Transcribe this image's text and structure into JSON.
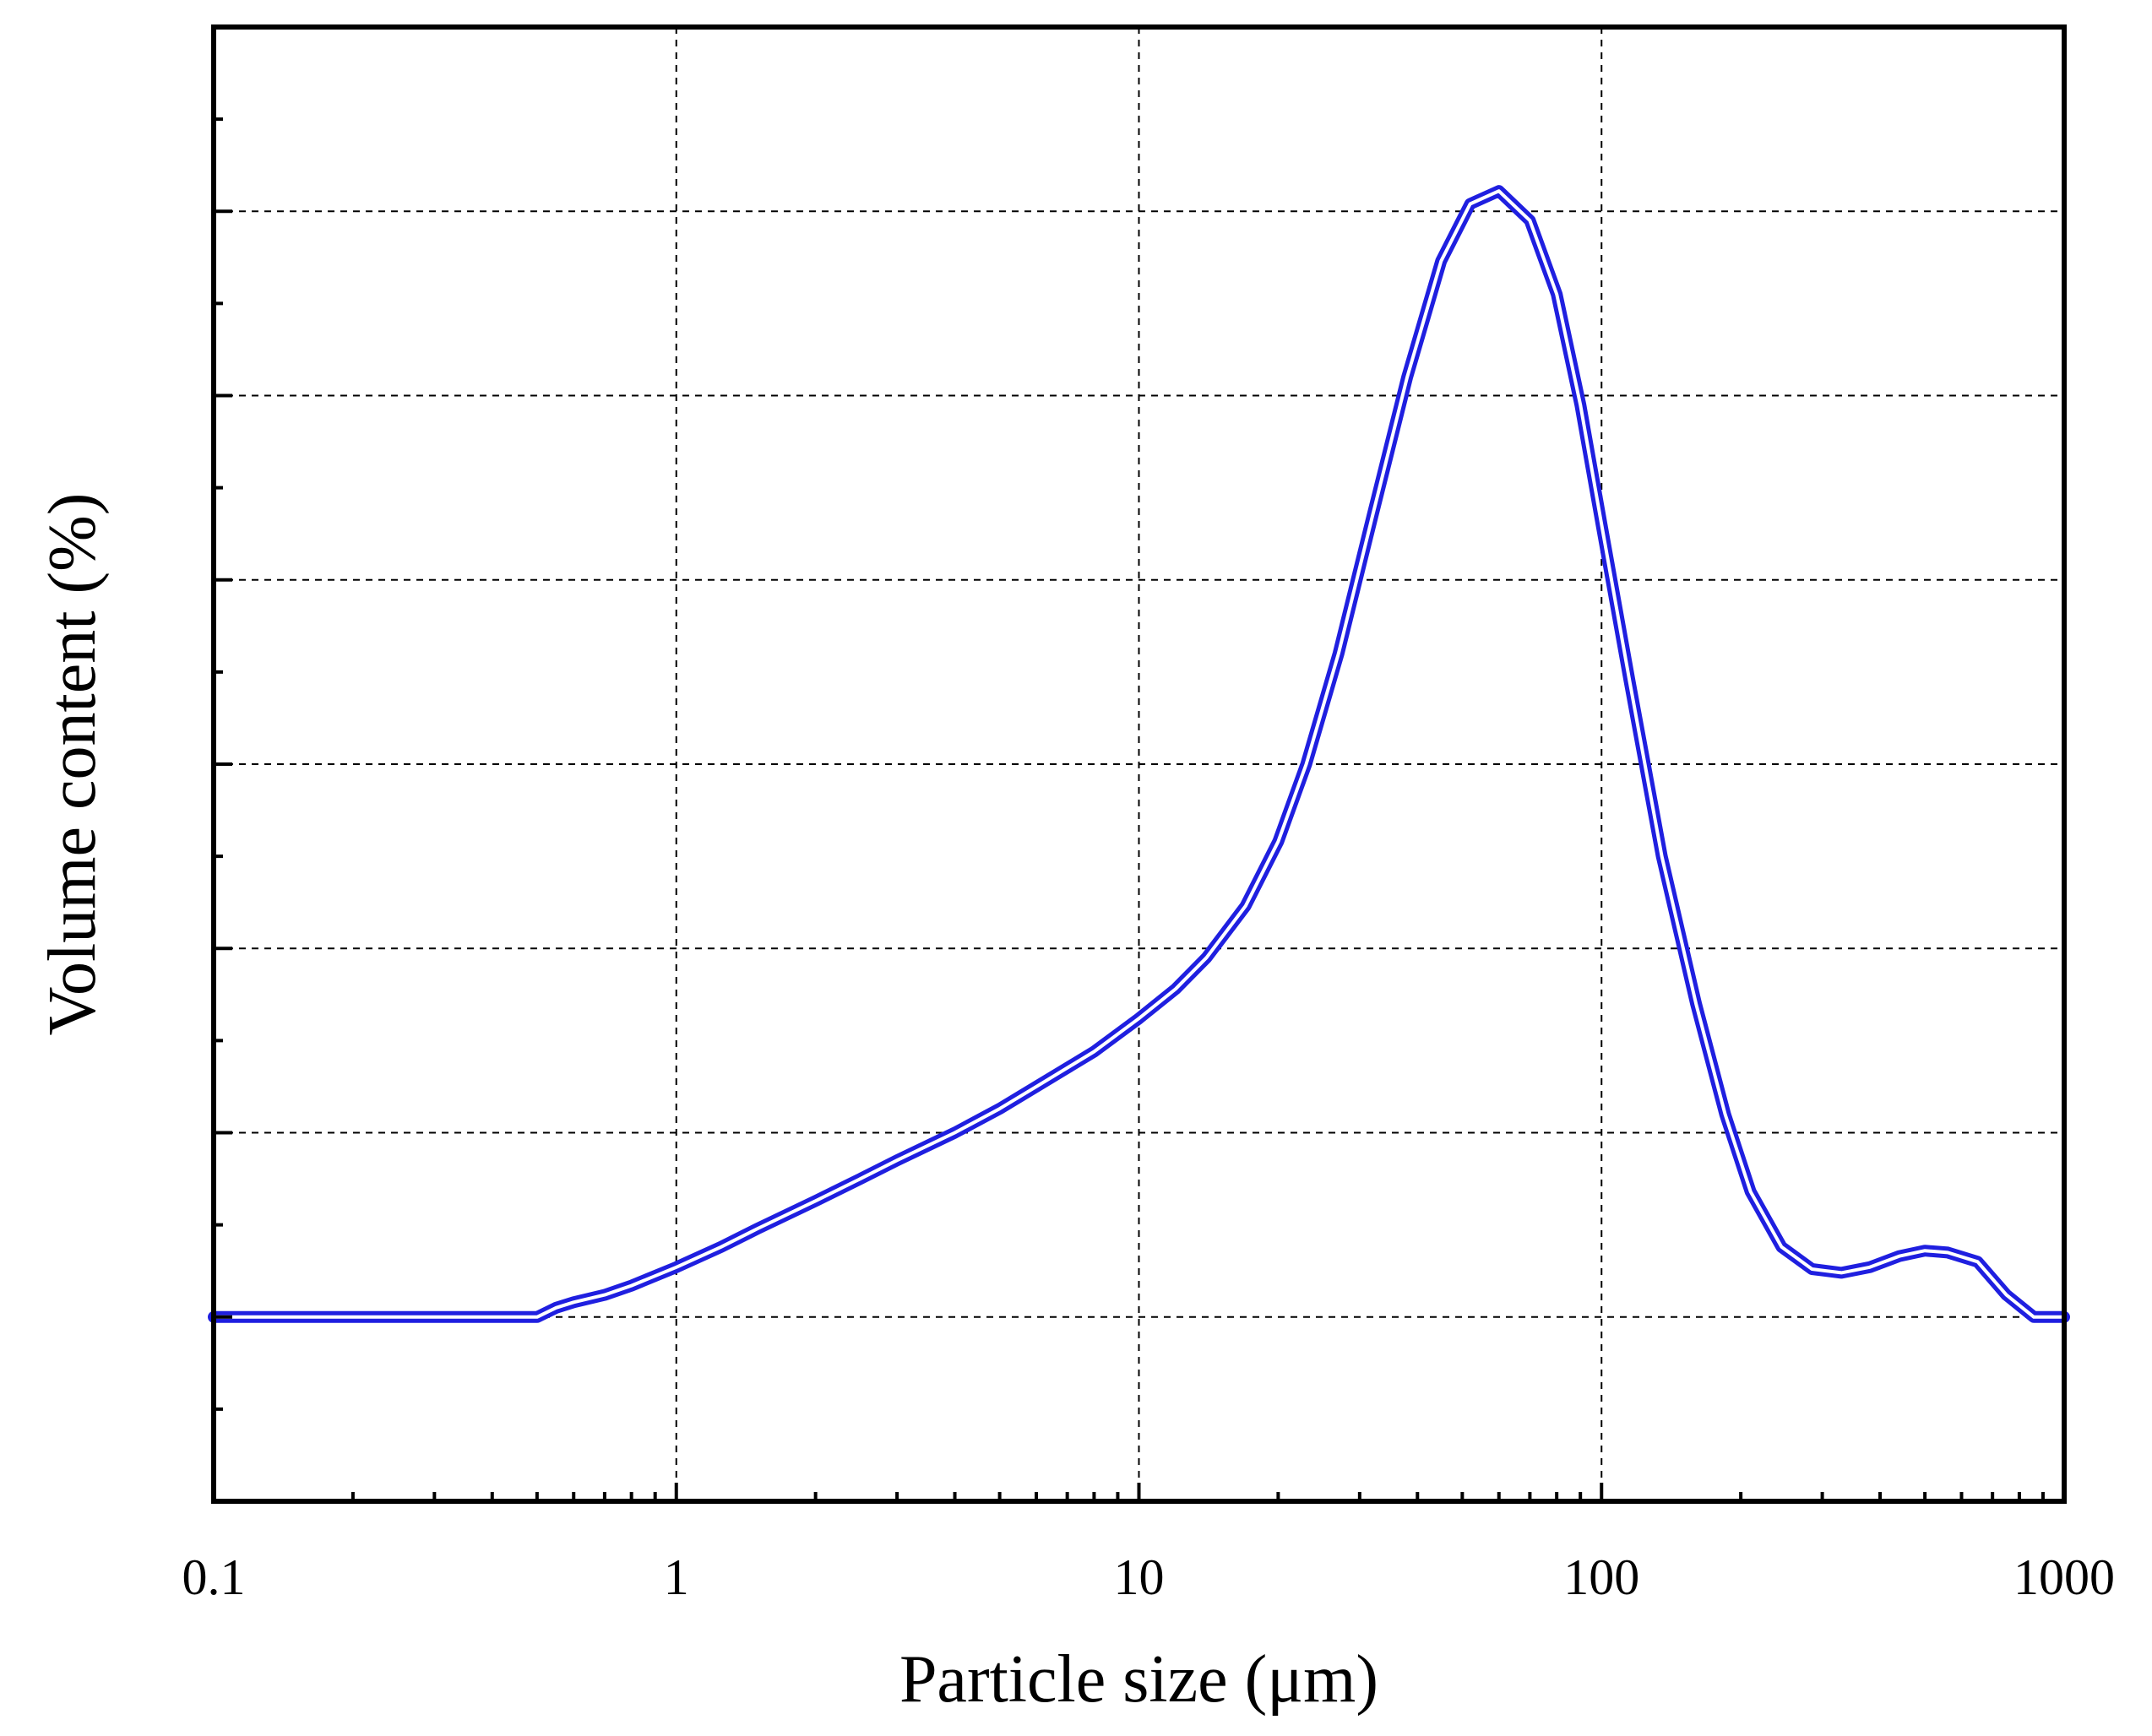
{
  "chart_data": {
    "type": "line",
    "title": "",
    "xlabel": "Particle size (μm)",
    "ylabel": "Volume content (%)",
    "x_scale": "log",
    "xlim": [
      0.1,
      1000
    ],
    "ylim": [
      -1,
      7
    ],
    "x_ticks": [
      {
        "value": 0.1,
        "label": "0.1"
      },
      {
        "value": 1,
        "label": "1"
      },
      {
        "value": 10,
        "label": "10"
      },
      {
        "value": 100,
        "label": "100"
      },
      {
        "value": 1000,
        "label": "1000"
      }
    ],
    "y_major_ticks": [
      0,
      1,
      2,
      3,
      4,
      5,
      6
    ],
    "y_tick_labels_shown": false,
    "grid": true,
    "line_color": "#1f1fe0",
    "line_style": "double",
    "series": [
      {
        "x": [
          0.1,
          0.2,
          0.3,
          0.45,
          0.5,
          0.55,
          0.6,
          0.7,
          0.8,
          1.0,
          1.25,
          1.5,
          2.0,
          2.5,
          3.0,
          4.0,
          5.0,
          6.0,
          8.0,
          10.0,
          12.0,
          14.0,
          17.0,
          20.0,
          23.0,
          27.0,
          32.0,
          38.0,
          45.0,
          52.0,
          60.0,
          70.0,
          80.0,
          90.0,
          100.0,
          115.0,
          135.0,
          160.0,
          185.0,
          210.0,
          245.0,
          285.0,
          330.0,
          380.0,
          440.0,
          500.0,
          560.0,
          650.0,
          750.0,
          860.0,
          1000.0
        ],
        "y": [
          0.0,
          0.0,
          0.0,
          0.0,
          0.0,
          0.05,
          0.08,
          0.12,
          0.17,
          0.27,
          0.38,
          0.48,
          0.63,
          0.75,
          0.85,
          1.0,
          1.13,
          1.25,
          1.44,
          1.62,
          1.78,
          1.95,
          2.23,
          2.58,
          3.0,
          3.6,
          4.35,
          5.1,
          5.73,
          6.04,
          6.11,
          5.95,
          5.55,
          4.95,
          4.3,
          3.45,
          2.5,
          1.7,
          1.1,
          0.68,
          0.38,
          0.26,
          0.24,
          0.27,
          0.33,
          0.36,
          0.35,
          0.3,
          0.12,
          0.0,
          0.0
        ]
      }
    ]
  }
}
